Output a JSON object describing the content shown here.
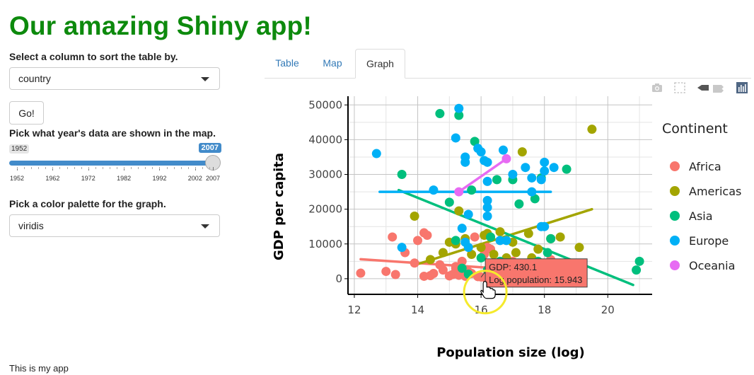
{
  "app": {
    "title": "Our amazing Shiny app!",
    "footer": "This is my app"
  },
  "controls": {
    "sort_label": "Select a column to sort the table by.",
    "sort_value": "country",
    "go_label": "Go!",
    "year_label": "Pick what year's data are shown in the map.",
    "year_slider": {
      "min": 1952,
      "max": 2007,
      "value": 2007,
      "tick_labels": [
        "1952",
        "1962",
        "1972",
        "1982",
        "1992",
        "2002",
        "2007"
      ]
    },
    "palette_label": "Pick a color palette for the graph.",
    "palette_value": "viridis"
  },
  "tabs": [
    {
      "label": "Table"
    },
    {
      "label": "Map"
    },
    {
      "label": "Graph"
    }
  ],
  "active_tab": "Graph",
  "modebar": [
    "camera-icon",
    "box-select-icon",
    "compare-hover-icon",
    "bar-chart-icon"
  ],
  "tooltip": {
    "line1": "GDP: 430.1",
    "line2": "Log population: 15.943"
  },
  "chart_data": {
    "type": "scatter",
    "xlabel": "Population size (log)",
    "ylabel": "GDP per capita",
    "xlim": [
      11.8,
      21.4
    ],
    "ylim": [
      -4500,
      52500
    ],
    "xticks": [
      12,
      14,
      16,
      18,
      20
    ],
    "yticks": [
      0,
      10000,
      20000,
      30000,
      40000,
      50000
    ],
    "grid": true,
    "legend_title": "Continent",
    "legend_position": "right",
    "colors": {
      "Africa": "#F8766D",
      "Americas": "#A3A500",
      "Asia": "#00BF7D",
      "Europe": "#00B0F6",
      "Oceania": "#E76BF3"
    },
    "series": [
      {
        "name": "Africa",
        "points": [
          [
            12.2,
            1600
          ],
          [
            13.0,
            2100
          ],
          [
            13.2,
            12000
          ],
          [
            13.3,
            1200
          ],
          [
            13.6,
            7500
          ],
          [
            13.9,
            4500
          ],
          [
            14.0,
            11000
          ],
          [
            14.2,
            13200
          ],
          [
            14.2,
            700
          ],
          [
            14.3,
            12500
          ],
          [
            14.4,
            900
          ],
          [
            14.5,
            1500
          ],
          [
            14.7,
            4000
          ],
          [
            14.8,
            2500
          ],
          [
            15.0,
            800
          ],
          [
            15.1,
            1200
          ],
          [
            15.2,
            3000
          ],
          [
            15.3,
            1000
          ],
          [
            15.4,
            5000
          ],
          [
            15.5,
            700
          ],
          [
            15.6,
            2000
          ],
          [
            15.7,
            1500
          ],
          [
            15.8,
            12000
          ],
          [
            15.9,
            600
          ],
          [
            16.0,
            500
          ],
          [
            16.1,
            7000
          ],
          [
            16.1,
            400
          ],
          [
            16.2,
            9000
          ],
          [
            16.3,
            8500
          ],
          [
            16.3,
            1200
          ],
          [
            16.4,
            3000
          ],
          [
            16.5,
            2000
          ],
          [
            16.7,
            1500
          ],
          [
            16.8,
            600
          ],
          [
            17.0,
            5000
          ],
          [
            17.1,
            2500
          ],
          [
            17.3,
            1200
          ],
          [
            18.2,
            5500
          ],
          [
            18.6,
            1000
          ],
          [
            15.2,
            3500
          ]
        ],
        "trend": [
          [
            12.2,
            5600
          ],
          [
            16.3,
            3100
          ]
        ]
      },
      {
        "name": "Americas",
        "points": [
          [
            13.9,
            18000
          ],
          [
            14.4,
            5500
          ],
          [
            14.8,
            7500
          ],
          [
            15.0,
            10500
          ],
          [
            15.2,
            10000
          ],
          [
            15.3,
            19500
          ],
          [
            15.5,
            11500
          ],
          [
            15.7,
            7000
          ],
          [
            16.0,
            9000
          ],
          [
            16.1,
            12500
          ],
          [
            16.2,
            13000
          ],
          [
            16.4,
            7000
          ],
          [
            16.6,
            13500
          ],
          [
            16.8,
            6000
          ],
          [
            17.0,
            10500
          ],
          [
            17.1,
            7500
          ],
          [
            17.3,
            36500
          ],
          [
            17.3,
            3500
          ],
          [
            17.5,
            13000
          ],
          [
            17.6,
            6000
          ],
          [
            17.8,
            8500
          ],
          [
            18.2,
            11500
          ],
          [
            18.5,
            12000
          ],
          [
            19.1,
            9000
          ],
          [
            19.5,
            43000
          ]
        ],
        "trend": [
          [
            14.0,
            4200
          ],
          [
            19.5,
            20000
          ]
        ]
      },
      {
        "name": "Asia",
        "points": [
          [
            13.5,
            30000
          ],
          [
            14.7,
            47500
          ],
          [
            15.0,
            22000
          ],
          [
            15.2,
            11000
          ],
          [
            15.3,
            47000
          ],
          [
            15.4,
            3000
          ],
          [
            15.6,
            1300
          ],
          [
            15.7,
            25500
          ],
          [
            15.8,
            39500
          ],
          [
            16.0,
            6000
          ],
          [
            16.2,
            2500
          ],
          [
            16.3,
            12000
          ],
          [
            16.4,
            4000
          ],
          [
            16.5,
            28500
          ],
          [
            16.6,
            5000
          ],
          [
            16.8,
            4500
          ],
          [
            17.0,
            28500
          ],
          [
            17.2,
            21500
          ],
          [
            17.5,
            4500
          ],
          [
            17.7,
            23000
          ],
          [
            17.8,
            5000
          ],
          [
            17.9,
            29000
          ],
          [
            18.0,
            2500
          ],
          [
            18.1,
            7500
          ],
          [
            18.2,
            11500
          ],
          [
            18.3,
            3500
          ],
          [
            18.4,
            2000
          ],
          [
            18.7,
            31500
          ],
          [
            20.9,
            2500
          ],
          [
            21.0,
            5000
          ]
        ],
        "trend": [
          [
            13.4,
            25500
          ],
          [
            20.8,
            -1800
          ]
        ]
      },
      {
        "name": "Europe",
        "points": [
          [
            12.7,
            36000
          ],
          [
            13.5,
            9000
          ],
          [
            14.5,
            25500
          ],
          [
            15.2,
            40500
          ],
          [
            15.3,
            49000
          ],
          [
            15.4,
            14500
          ],
          [
            15.5,
            35000
          ],
          [
            15.5,
            33500
          ],
          [
            15.5,
            10500
          ],
          [
            15.6,
            18500
          ],
          [
            15.9,
            37500
          ],
          [
            16.0,
            36500
          ],
          [
            16.1,
            34000
          ],
          [
            16.2,
            33500
          ],
          [
            16.2,
            28000
          ],
          [
            16.2,
            22500
          ],
          [
            16.2,
            20500
          ],
          [
            16.2,
            18000
          ],
          [
            16.6,
            11000
          ],
          [
            16.7,
            37000
          ],
          [
            16.8,
            11000
          ],
          [
            17.0,
            30000
          ],
          [
            17.4,
            32000
          ],
          [
            17.6,
            25000
          ],
          [
            17.6,
            29000
          ],
          [
            17.9,
            15000
          ],
          [
            17.9,
            28500
          ],
          [
            18.0,
            31000
          ],
          [
            18.0,
            33500
          ],
          [
            18.3,
            32000
          ],
          [
            18.0,
            15000
          ],
          [
            15.6,
            9000
          ]
        ],
        "trend": [
          [
            12.8,
            25000
          ],
          [
            18.2,
            25000
          ]
        ]
      },
      {
        "name": "Oceania",
        "points": [
          [
            15.3,
            25000
          ],
          [
            16.8,
            34500
          ]
        ],
        "trend": [
          [
            15.3,
            25000
          ],
          [
            16.8,
            34500
          ]
        ]
      }
    ]
  }
}
